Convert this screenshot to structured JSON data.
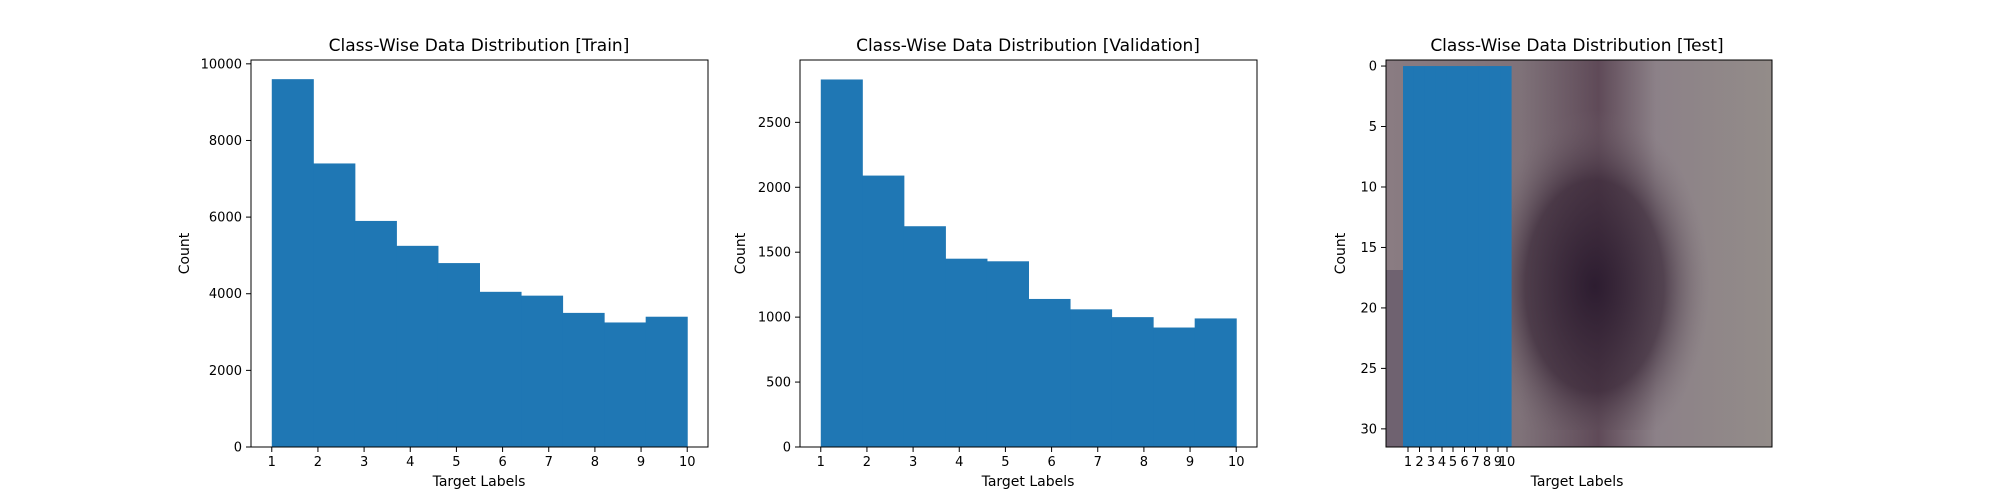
{
  "chart_data": [
    {
      "type": "bar",
      "title": "Class-Wise Data Distribution [Train]",
      "xlabel": "Target Labels",
      "ylabel": "Count",
      "categories": [
        "1",
        "2",
        "3",
        "4",
        "5",
        "6",
        "7",
        "8",
        "9",
        "10"
      ],
      "values": [
        9600,
        7400,
        5900,
        5250,
        4800,
        4050,
        3950,
        3500,
        3250,
        3400
      ],
      "xticks": [
        "1",
        "2",
        "3",
        "4",
        "5",
        "6",
        "7",
        "8",
        "9",
        "10"
      ],
      "yticks": [
        "0",
        "2000",
        "4000",
        "6000",
        "8000",
        "10000"
      ],
      "xlim": [
        0.55,
        10.45
      ],
      "ylim": [
        0,
        10100
      ],
      "grid": false,
      "bar_color": "#1f77b4"
    },
    {
      "type": "bar",
      "title": "Class-Wise Data Distribution [Validation]",
      "xlabel": "Target Labels",
      "ylabel": "Count",
      "categories": [
        "1",
        "2",
        "3",
        "4",
        "5",
        "6",
        "7",
        "8",
        "9",
        "10"
      ],
      "values": [
        2830,
        2090,
        1700,
        1450,
        1430,
        1140,
        1060,
        1000,
        920,
        990
      ],
      "xticks": [
        "1",
        "2",
        "3",
        "4",
        "5",
        "6",
        "7",
        "8",
        "9",
        "10"
      ],
      "yticks": [
        "0",
        "500",
        "1000",
        "1500",
        "2000",
        "2500"
      ],
      "xlim": [
        0.55,
        10.45
      ],
      "ylim": [
        0,
        2980
      ],
      "grid": false,
      "bar_color": "#1f77b4"
    },
    {
      "type": "bar",
      "title": "Class-Wise Data Distribution [Test]",
      "xlabel": "Target Labels",
      "ylabel": "Count",
      "categories": [
        "1",
        "2",
        "3",
        "4",
        "5",
        "6",
        "7",
        "8",
        "9",
        "10"
      ],
      "xticks": [
        "1",
        "2",
        "3",
        "4",
        "5",
        "6",
        "7",
        "8",
        "9",
        "10"
      ],
      "yticks": [
        "0",
        "5",
        "10",
        "15",
        "20",
        "25",
        "30"
      ],
      "note_visual": "axes shows a blurred photo image (32x32 px) with a solid blue bar block covering x from 1 to 10",
      "ylim_inverted": [
        31.5,
        -0.5
      ],
      "bar_block_top": 0,
      "grid": false,
      "bar_color": "#1f77b4"
    }
  ]
}
